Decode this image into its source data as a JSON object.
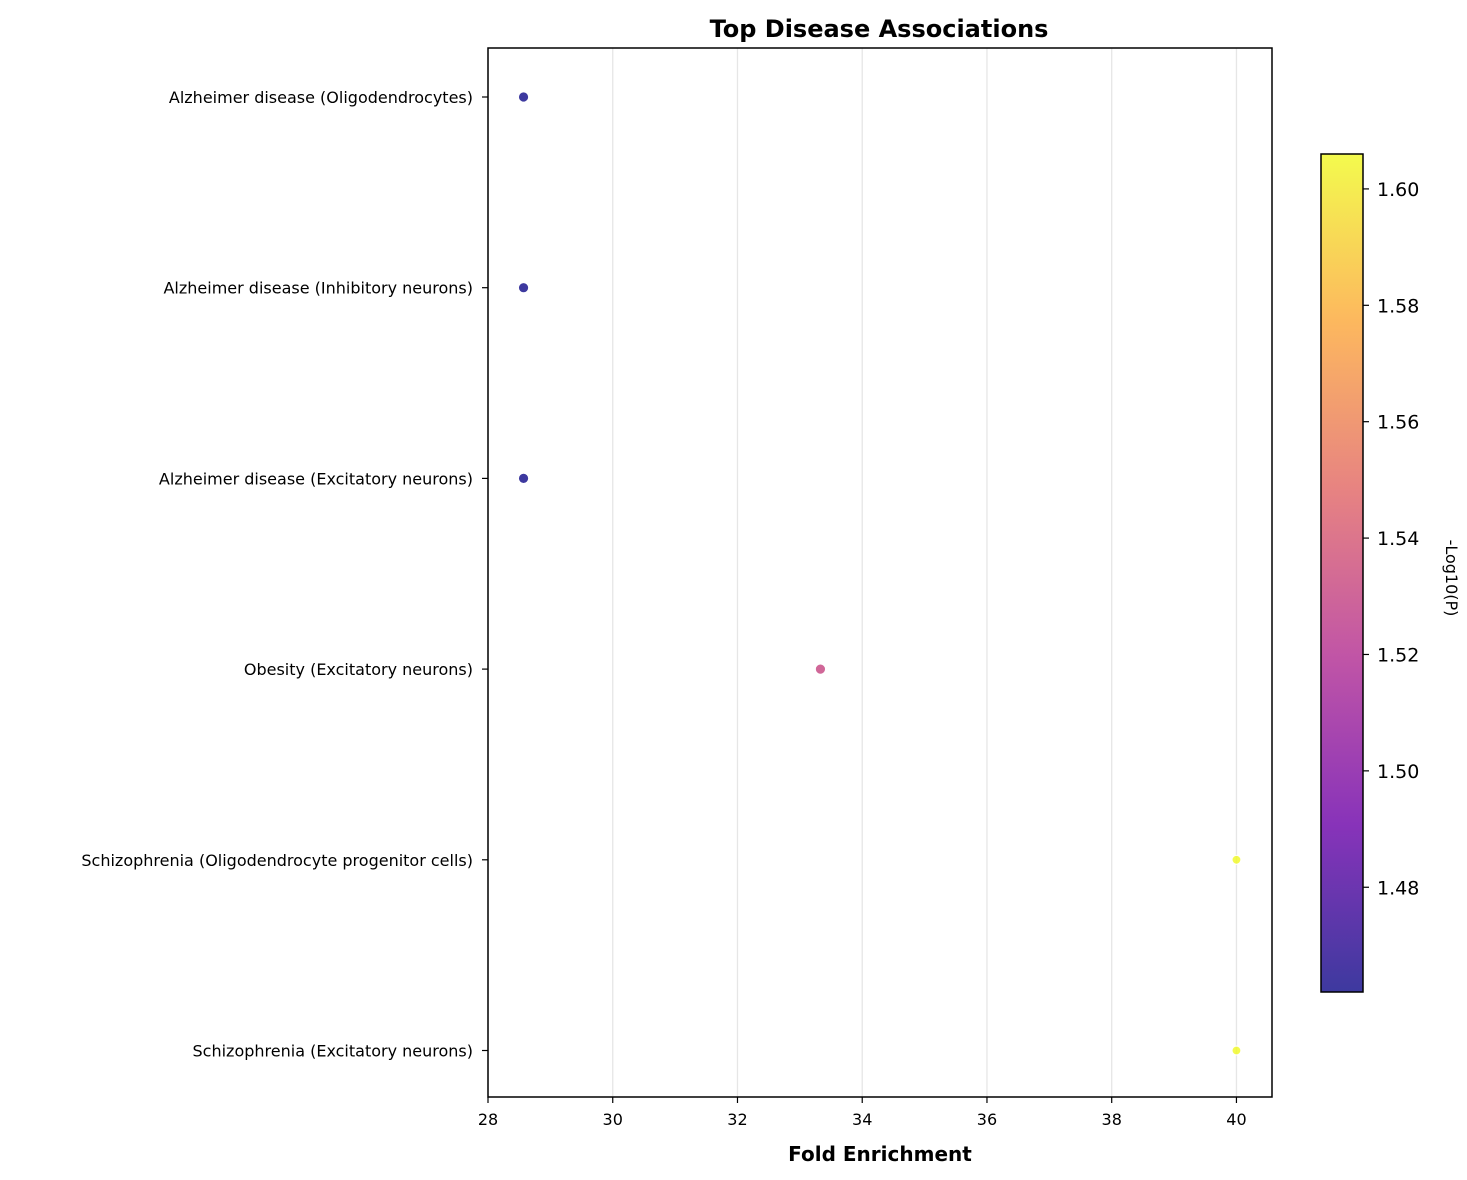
{
  "chart_data": {
    "type": "scatter",
    "title": "Top Disease Associations",
    "xlabel": "Fold Enrichment",
    "ylabel": "",
    "xlim": [
      28,
      40.57
    ],
    "xticks": [
      28,
      30,
      32,
      34,
      36,
      38,
      40
    ],
    "grid": "vertical",
    "categories": [
      "Alzheimer disease (Oligodendrocytes)",
      "Alzheimer disease (Inhibitory neurons)",
      "Alzheimer disease (Excitatory neurons)",
      "Obesity (Excitatory neurons)",
      "Schizophrenia (Oligodendrocyte progenitor cells)",
      "Schizophrenia (Excitatory neurons)"
    ],
    "points": [
      {
        "category": "Alzheimer disease (Oligodendrocytes)",
        "x": 28.57,
        "color_value": 1.462
      },
      {
        "category": "Alzheimer disease (Inhibitory neurons)",
        "x": 28.57,
        "color_value": 1.462
      },
      {
        "category": "Alzheimer disease (Excitatory neurons)",
        "x": 28.57,
        "color_value": 1.462
      },
      {
        "category": "Obesity (Excitatory neurons)",
        "x": 33.33,
        "color_value": 1.531
      },
      {
        "category": "Schizophrenia (Oligodendrocyte progenitor cells)",
        "x": 40.0,
        "color_value": 1.606
      },
      {
        "category": "Schizophrenia (Excitatory neurons)",
        "x": 40.0,
        "color_value": 1.606
      }
    ],
    "colorbar": {
      "label": "-Log10(P)",
      "colormap": "plasma",
      "range": [
        1.462,
        1.606
      ],
      "ticks": [
        1.48,
        1.5,
        1.52,
        1.54,
        1.56,
        1.58,
        1.6
      ],
      "tick_labels": [
        "1.48",
        "1.50",
        "1.52",
        "1.54",
        "1.56",
        "1.58",
        "1.60"
      ],
      "placement": "right"
    },
    "colormap_stops": [
      "#0d0887",
      "#6a00a8",
      "#b12a90",
      "#e16462",
      "#fca636",
      "#f0f921"
    ]
  }
}
